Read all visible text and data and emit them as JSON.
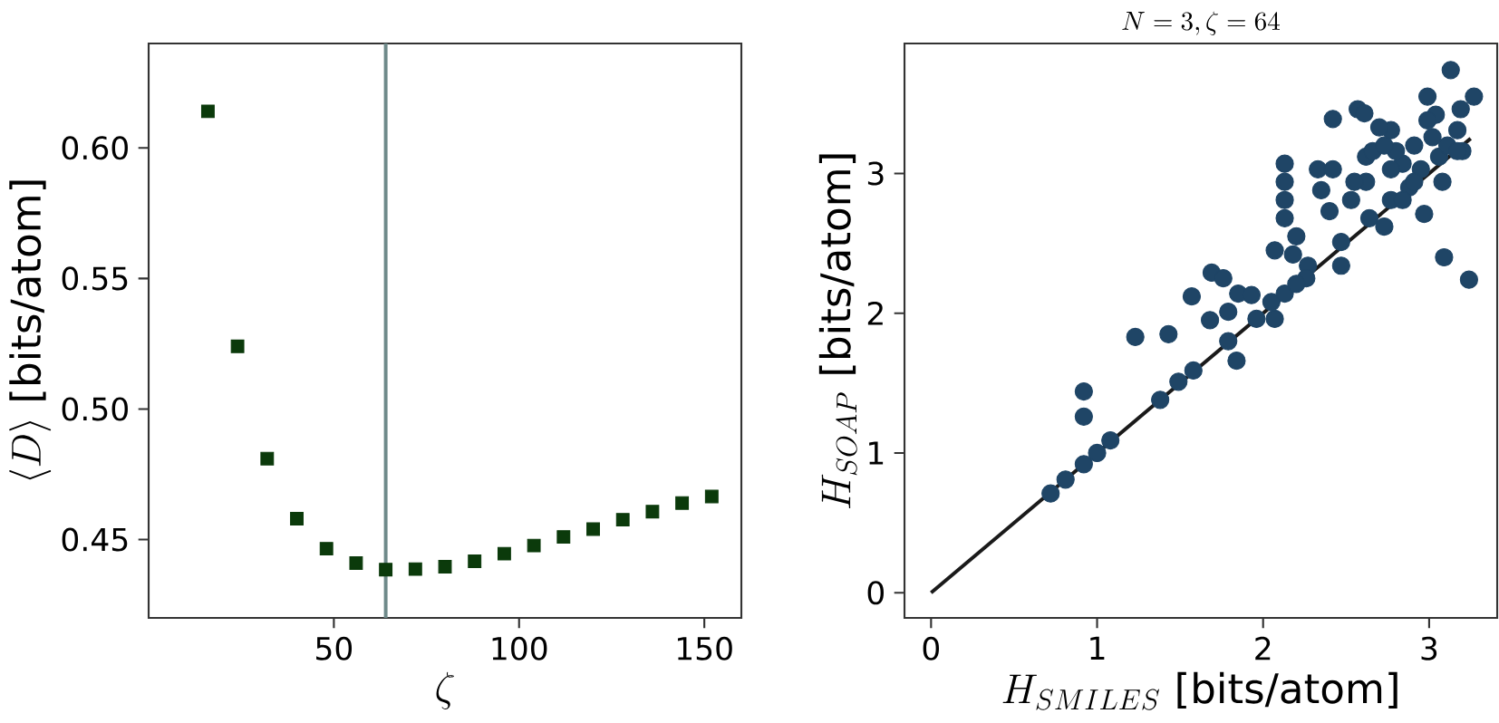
{
  "chart_data": [
    {
      "type": "scatter",
      "xlabel": "\\zeta",
      "ylabel": "\\langle D\\rangle\\ \\textrm{[bits/atom]}",
      "marker": "square",
      "color": "#0b3a0b",
      "x": [
        16,
        24,
        32,
        40,
        48,
        56,
        64,
        72,
        80,
        88,
        96,
        104,
        112,
        120,
        128,
        136,
        144,
        152
      ],
      "values": [
        0.614,
        0.524,
        0.481,
        0.458,
        0.4465,
        0.441,
        0.4385,
        0.4387,
        0.4396,
        0.4417,
        0.4446,
        0.4477,
        0.451,
        0.454,
        0.4576,
        0.4607,
        0.464,
        0.4665
      ],
      "xlim": [
        0,
        160
      ],
      "ylim": [
        0.42,
        0.64
      ],
      "xticks": [
        50,
        100,
        150
      ],
      "yticks": [
        0.45,
        {
          "value": 0.5,
          "label": "0.50"
        },
        0.55,
        {
          "value": 0.6,
          "label": "0.60"
        }
      ],
      "ref_lines": [
        {
          "axis": "x",
          "value": 64,
          "color": "#6f8a8a"
        }
      ]
    },
    {
      "type": "scatter",
      "title": "N=3,\\zeta=64",
      "xlabel": "H_{SMILES}\\ \\textrm{[bits/atom]}",
      "ylabel": "H_{SOAP}\\ \\textrm{[bits/atom]}",
      "xlim": [
        -0.16,
        3.41
      ],
      "ylim": [
        -0.18,
        3.93
      ],
      "xticks": [
        0,
        1,
        2,
        3
      ],
      "yticks": [
        0,
        1,
        2,
        3
      ],
      "series": [
        {
          "type": "scatter",
          "marker": "circle",
          "color": "#1f4566",
          "x": [
            0.72,
            0.81,
            0.92,
            0.92,
            0.92,
            1.0,
            1.08,
            1.23,
            1.38,
            1.43,
            1.49,
            1.58,
            1.57,
            1.68,
            1.69,
            1.76,
            1.79,
            1.79,
            1.84,
            1.85,
            1.93,
            1.96,
            2.07,
            2.05,
            2.13,
            2.07,
            2.13,
            2.13,
            2.13,
            2.13,
            2.18,
            2.2,
            2.27,
            2.33,
            2.35,
            2.42,
            2.42,
            2.4,
            2.47,
            2.47,
            2.53,
            2.57,
            2.61,
            2.62,
            2.62,
            2.64,
            2.73,
            2.77,
            2.77,
            2.84,
            2.88,
            2.91,
            2.95,
            2.97,
            2.99,
            3.02,
            3.04,
            3.08,
            3.09,
            3.13,
            3.17,
            3.19,
            3.2,
            3.24,
            3.27,
            2.7,
            2.8,
            2.66,
            2.55,
            2.84,
            3.06,
            2.91,
            2.77,
            2.99,
            2.73,
            3.11,
            3.17,
            2.26,
            2.2
          ],
          "values": [
            0.71,
            0.81,
            0.92,
            1.26,
            1.44,
            1.0,
            1.09,
            1.83,
            1.38,
            1.85,
            1.51,
            1.59,
            2.12,
            1.95,
            2.29,
            2.25,
            2.01,
            1.8,
            1.66,
            2.14,
            2.13,
            1.96,
            1.96,
            2.08,
            2.14,
            2.45,
            3.07,
            2.94,
            2.81,
            2.68,
            2.42,
            2.55,
            2.34,
            3.03,
            2.88,
            3.03,
            3.39,
            2.73,
            2.34,
            2.51,
            2.81,
            3.46,
            3.43,
            3.12,
            2.94,
            2.68,
            2.62,
            2.81,
            3.31,
            3.07,
            2.9,
            3.2,
            3.03,
            2.71,
            3.55,
            3.26,
            3.42,
            2.94,
            2.4,
            3.74,
            3.31,
            3.46,
            3.16,
            2.24,
            3.55,
            3.33,
            3.16,
            3.16,
            2.94,
            2.81,
            3.12,
            2.94,
            3.03,
            3.38,
            3.2,
            3.2,
            3.16,
            2.25,
            2.21
          ]
        },
        {
          "type": "line",
          "marker": "none",
          "color": "#1a1a1a",
          "x": [
            0,
            3.25
          ],
          "values": [
            0,
            3.25
          ]
        }
      ]
    }
  ]
}
